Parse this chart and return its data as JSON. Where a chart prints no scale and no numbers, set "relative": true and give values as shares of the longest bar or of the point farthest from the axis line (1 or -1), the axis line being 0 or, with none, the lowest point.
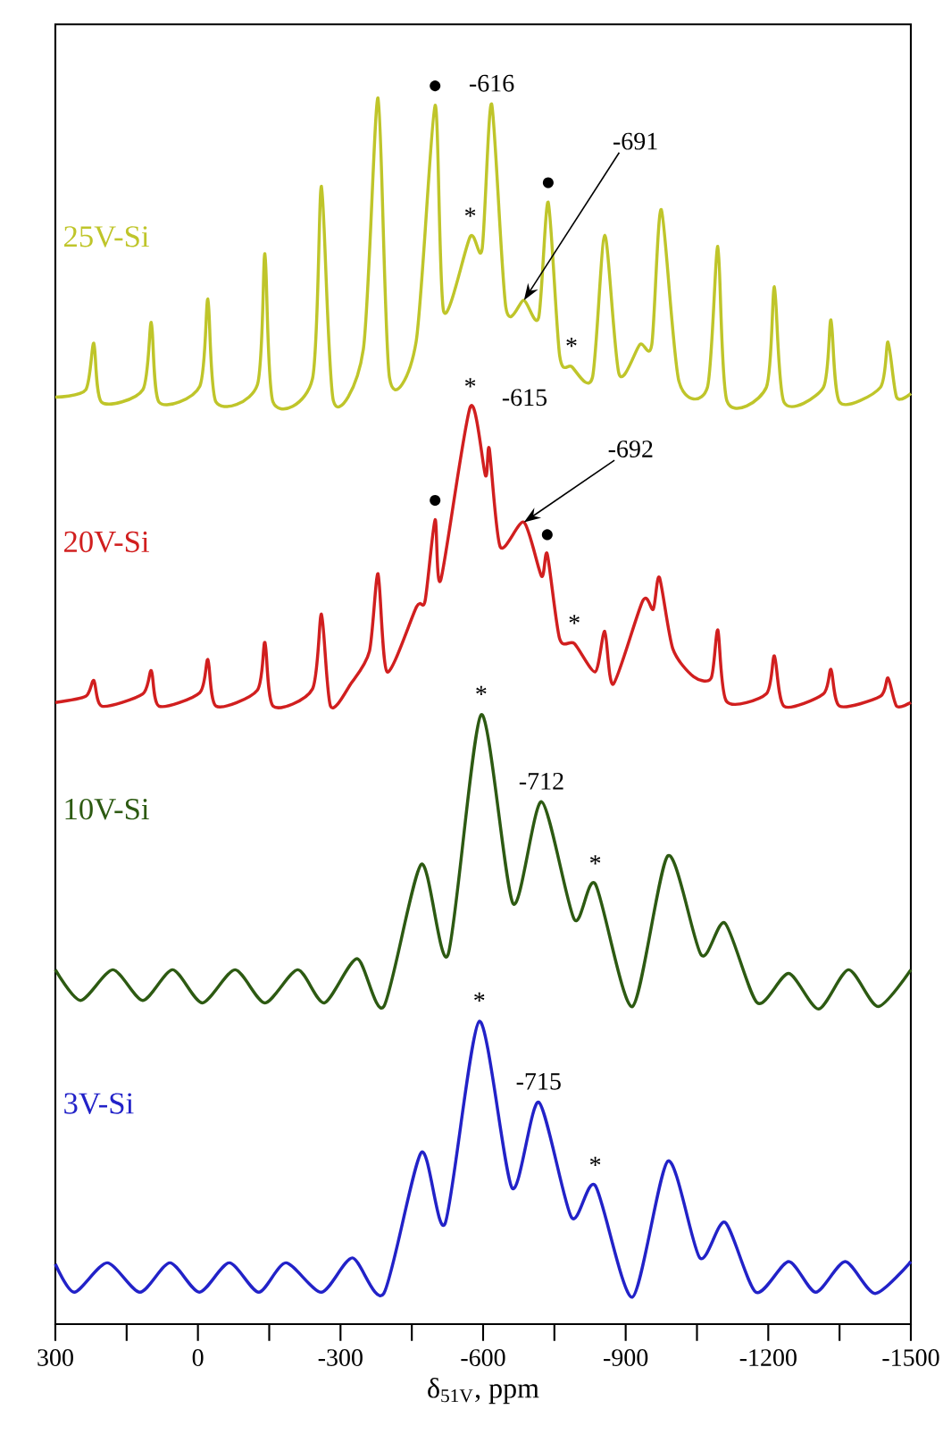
{
  "chart_data": {
    "type": "line",
    "relative": true,
    "xlabel": "δ$_{51V}$, ppm",
    "xlim": [
      300,
      -1500
    ],
    "xticks": [
      300,
      {
        "value": 150,
        "label": null
      },
      0,
      {
        "value": -150,
        "label": null
      },
      -300,
      {
        "value": -450,
        "label": null
      },
      -600,
      {
        "value": -750,
        "label": null
      },
      -900,
      {
        "value": -1050,
        "label": null
      },
      -1200,
      {
        "value": -1350,
        "label": null
      },
      -1500
    ],
    "series": [
      {
        "name": "25V-Si",
        "color": "#bfc52a",
        "x": [
          300,
          236,
          219,
          203,
          116,
          98,
          82,
          -4,
          -21,
          -38,
          -125,
          -141,
          -158,
          -241,
          -260,
          -285,
          -348,
          -379,
          -403,
          -459,
          -499,
          -517,
          -573,
          -598,
          -618,
          -648,
          -686,
          -717,
          -737,
          -761,
          -786,
          -830,
          -856,
          -886,
          -930,
          -955,
          -975,
          -1012,
          -1072,
          -1094,
          -1113,
          -1196,
          -1213,
          -1233,
          -1316,
          -1332,
          -1350,
          -1436,
          -1452,
          -1470,
          -1500
        ],
        "values": [
          0.756,
          0.762,
          0.8,
          0.752,
          0.762,
          0.817,
          0.752,
          0.765,
          0.836,
          0.752,
          0.766,
          0.873,
          0.752,
          0.771,
          0.928,
          0.753,
          0.795,
          1.0,
          0.772,
          0.801,
          0.994,
          0.826,
          0.887,
          0.877,
          0.995,
          0.829,
          0.835,
          0.821,
          0.915,
          0.79,
          0.781,
          0.772,
          0.888,
          0.775,
          0.799,
          0.799,
          0.909,
          0.769,
          0.764,
          0.879,
          0.753,
          0.764,
          0.846,
          0.752,
          0.764,
          0.819,
          0.752,
          0.764,
          0.801,
          0.756,
          0.759
        ]
      },
      {
        "name": "20V-Si",
        "color": "#d11f1f",
        "x": [
          300,
          236,
          219,
          202,
          116,
          98,
          82,
          -4,
          -21,
          -38,
          -125,
          -141,
          -158,
          -241,
          -260,
          -279,
          -323,
          -361,
          -379,
          -398,
          -460,
          -478,
          -499,
          -511,
          -573,
          -605,
          -613,
          -636,
          -686,
          -723,
          -735,
          -761,
          -792,
          -836,
          -856,
          -874,
          -936,
          -958,
          -971,
          -999,
          -1043,
          -1080,
          -1094,
          -1112,
          -1196,
          -1213,
          -1233,
          -1316,
          -1332,
          -1350,
          -1436,
          -1452,
          -1470,
          -1500
        ],
        "values": [
          0.507,
          0.512,
          0.525,
          0.504,
          0.514,
          0.533,
          0.504,
          0.515,
          0.542,
          0.504,
          0.517,
          0.556,
          0.504,
          0.518,
          0.579,
          0.504,
          0.523,
          0.549,
          0.612,
          0.532,
          0.585,
          0.59,
          0.656,
          0.607,
          0.748,
          0.692,
          0.714,
          0.634,
          0.654,
          0.61,
          0.628,
          0.559,
          0.555,
          0.532,
          0.565,
          0.522,
          0.59,
          0.583,
          0.609,
          0.551,
          0.528,
          0.527,
          0.566,
          0.508,
          0.514,
          0.545,
          0.504,
          0.514,
          0.534,
          0.504,
          0.512,
          0.527,
          0.504,
          0.507
        ]
      },
      {
        "name": "10V-Si",
        "color": "#2d5a12",
        "x": [
          300,
          247,
          179,
          116,
          53,
          -9,
          -78,
          -141,
          -210,
          -266,
          -335,
          -391,
          -470,
          -526,
          -596,
          -663,
          -723,
          -792,
          -836,
          -914,
          -989,
          -1059,
          -1109,
          -1177,
          -1243,
          -1306,
          -1369,
          -1431,
          -1500
        ],
        "values": [
          0.289,
          0.264,
          0.289,
          0.264,
          0.289,
          0.262,
          0.289,
          0.262,
          0.289,
          0.262,
          0.298,
          0.259,
          0.375,
          0.301,
          0.497,
          0.343,
          0.426,
          0.33,
          0.359,
          0.259,
          0.382,
          0.301,
          0.327,
          0.262,
          0.286,
          0.257,
          0.289,
          0.259,
          0.289
        ]
      },
      {
        "name": "3V-Si",
        "color": "#2222c8",
        "x": [
          300,
          260,
          191,
          122,
          59,
          -3,
          -66,
          -128,
          -185,
          -260,
          -325,
          -391,
          -470,
          -520,
          -592,
          -661,
          -717,
          -786,
          -836,
          -914,
          -989,
          -1056,
          -1109,
          -1174,
          -1243,
          -1300,
          -1362,
          -1425,
          -1500
        ],
        "values": [
          0.049,
          0.026,
          0.05,
          0.026,
          0.05,
          0.026,
          0.05,
          0.026,
          0.05,
          0.026,
          0.054,
          0.025,
          0.14,
          0.082,
          0.247,
          0.111,
          0.181,
          0.087,
          0.113,
          0.022,
          0.133,
          0.054,
          0.083,
          0.026,
          0.051,
          0.026,
          0.051,
          0.025,
          0.051
        ]
      }
    ],
    "annotations": [
      {
        "text": "-616",
        "x": -618,
        "y": 0.995
      },
      {
        "text": "●",
        "x": -499,
        "y": 0.994
      },
      {
        "text": "-691",
        "x": -686,
        "y": 0.835
      },
      {
        "text": "●",
        "x": -737,
        "y": 0.915
      },
      {
        "text": "*",
        "x": -573,
        "y": 0.887
      },
      {
        "text": "*",
        "x": -786,
        "y": 0.781
      },
      {
        "text": "*",
        "x": -573,
        "y": 0.748
      },
      {
        "text": "-615",
        "x": -573,
        "y": 0.748
      },
      {
        "text": "-692",
        "x": -686,
        "y": 0.654
      },
      {
        "text": "●",
        "x": -499,
        "y": 0.656
      },
      {
        "text": "●",
        "x": -735,
        "y": 0.628
      },
      {
        "text": "*",
        "x": -792,
        "y": 0.555
      },
      {
        "text": "*",
        "x": -596,
        "y": 0.497
      },
      {
        "text": "-712",
        "x": -723,
        "y": 0.426
      },
      {
        "text": "*",
        "x": -836,
        "y": 0.359
      },
      {
        "text": "*",
        "x": -592,
        "y": 0.247
      },
      {
        "text": "-715",
        "x": -717,
        "y": 0.181
      },
      {
        "text": "*",
        "x": -836,
        "y": 0.113
      }
    ]
  }
}
